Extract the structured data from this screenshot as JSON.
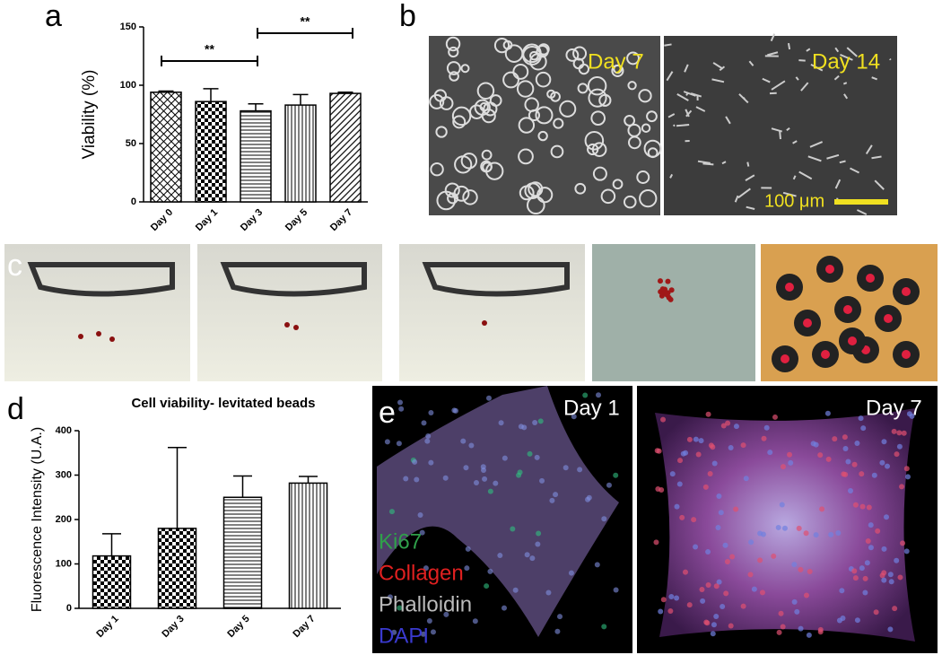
{
  "chart_data": [
    {
      "type": "bar",
      "ylabel": "Viability (%)",
      "categories": [
        "Day 0",
        "Day 1",
        "Day 3",
        "Day 5",
        "Day 7"
      ],
      "values": [
        94,
        86,
        78,
        83,
        93
      ],
      "errors": [
        1,
        11,
        6,
        9,
        1
      ],
      "ylim": [
        0,
        150
      ],
      "yticks": [
        0,
        50,
        100,
        150
      ],
      "color": "#000000",
      "annotations": [
        "**",
        "**"
      ]
    },
    {
      "type": "bar",
      "title": "Cell viability- levitated beads",
      "ylabel": "Fluorescence Intensity (U.A.)",
      "categories": [
        "Day 1",
        "Day 3",
        "Day 5",
        "Day 7"
      ],
      "values": [
        118,
        180,
        250,
        282
      ],
      "errors": [
        50,
        182,
        48,
        15
      ],
      "ylim": [
        0,
        400
      ],
      "yticks": [
        0,
        100,
        200,
        300,
        400
      ],
      "color": "#000000"
    }
  ],
  "panels": {
    "a": "a",
    "b": "b",
    "c": "c",
    "d": "d",
    "e": "e"
  },
  "images": {
    "b_left": "Day 7",
    "b_right": "Day 14",
    "scale": "100 μm",
    "e_left": "Day 1",
    "e_right": "Day 7",
    "stains": [
      "Ki67",
      "Collagen",
      "Phalloidin",
      "DAPI"
    ]
  }
}
